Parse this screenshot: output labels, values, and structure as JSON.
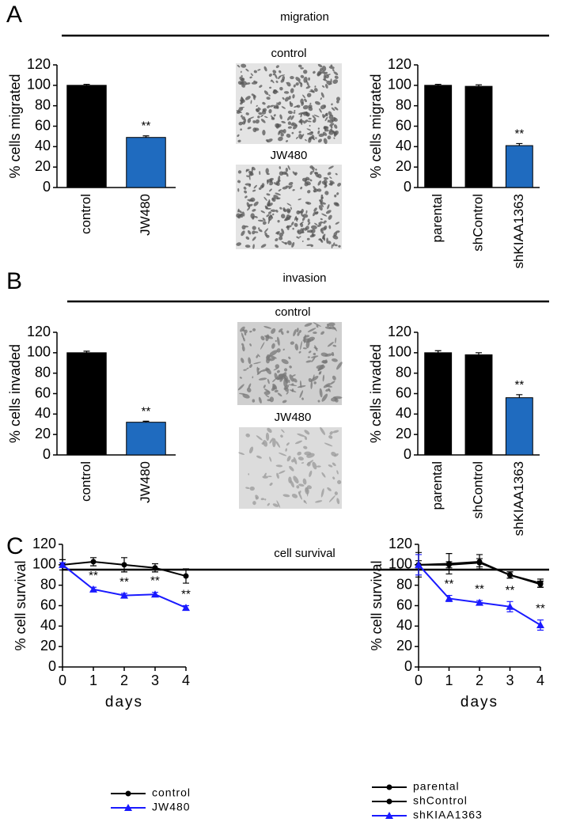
{
  "panels": [
    {
      "letter": "A",
      "title": "migration",
      "images": [
        "control",
        "JW480"
      ]
    },
    {
      "letter": "B",
      "title": "invasion",
      "images": [
        "control",
        "JW480"
      ]
    },
    {
      "letter": "C",
      "title": "cell survival"
    }
  ],
  "chart_data": [
    {
      "type": "bar",
      "ylabel": "% cells migrated",
      "categories": [
        "control",
        "JW480"
      ],
      "values": [
        100,
        49
      ],
      "errors": [
        1,
        1.5
      ],
      "colors": [
        "#000000",
        "#1f6bbf"
      ],
      "significance": [
        null,
        "**"
      ],
      "ylim": [
        0,
        120
      ],
      "yticks": [
        0,
        20,
        40,
        60,
        80,
        100,
        120
      ]
    },
    {
      "type": "bar",
      "ylabel": "% cells migrated",
      "categories": [
        "parental",
        "shControl",
        "shKIAA1363"
      ],
      "values": [
        100,
        99,
        41
      ],
      "errors": [
        1,
        1.5,
        2
      ],
      "colors": [
        "#000000",
        "#000000",
        "#1f6bbf"
      ],
      "significance": [
        null,
        null,
        "**"
      ],
      "ylim": [
        0,
        120
      ],
      "yticks": [
        0,
        20,
        40,
        60,
        80,
        100,
        120
      ]
    },
    {
      "type": "bar",
      "ylabel": "% cells invaded",
      "categories": [
        "control",
        "JW480"
      ],
      "values": [
        100,
        32
      ],
      "errors": [
        1.5,
        1
      ],
      "colors": [
        "#000000",
        "#1f6bbf"
      ],
      "significance": [
        null,
        "**"
      ],
      "ylim": [
        0,
        120
      ],
      "yticks": [
        0,
        20,
        40,
        60,
        80,
        100,
        120
      ]
    },
    {
      "type": "bar",
      "ylabel": "% cells invaded",
      "categories": [
        "parental",
        "shControl",
        "shKIAA1363"
      ],
      "values": [
        100,
        98,
        56
      ],
      "errors": [
        2,
        2,
        3
      ],
      "colors": [
        "#000000",
        "#000000",
        "#1f6bbf"
      ],
      "significance": [
        null,
        null,
        "**"
      ],
      "ylim": [
        0,
        120
      ],
      "yticks": [
        0,
        20,
        40,
        60,
        80,
        100,
        120
      ]
    },
    {
      "type": "line",
      "ylabel": "% cell survival",
      "xlabel": "days",
      "x": [
        0,
        1,
        2,
        3,
        4
      ],
      "xlim": [
        0,
        4
      ],
      "xticks": [
        0,
        1,
        2,
        3,
        4
      ],
      "ylim": [
        0,
        120
      ],
      "yticks": [
        0,
        20,
        40,
        60,
        80,
        100,
        120
      ],
      "series": [
        {
          "name": "control",
          "color": "#000000",
          "marker": "circle",
          "values": [
            100,
            103,
            100,
            97,
            89
          ],
          "errors": [
            5,
            4,
            7,
            4,
            7
          ]
        },
        {
          "name": "JW480",
          "color": "#1a1aff",
          "marker": "triangle",
          "values": [
            100,
            76,
            70,
            71,
            58
          ],
          "errors": [
            2,
            2,
            2,
            2,
            2
          ],
          "significance": [
            null,
            "**",
            "**",
            "**",
            "**"
          ]
        }
      ]
    },
    {
      "type": "line",
      "ylabel": "% cell survival",
      "xlabel": "days",
      "x": [
        0,
        1,
        2,
        3,
        4
      ],
      "xlim": [
        0,
        4
      ],
      "xticks": [
        0,
        1,
        2,
        3,
        4
      ],
      "ylim": [
        0,
        120
      ],
      "yticks": [
        0,
        20,
        40,
        60,
        80,
        100,
        120
      ],
      "series": [
        {
          "name": "parental",
          "color": "#000000",
          "marker": "circle",
          "values": [
            100,
            101,
            103,
            90,
            82
          ],
          "errors": [
            4,
            10,
            7,
            3,
            4
          ]
        },
        {
          "name": "shControl",
          "color": "#000000",
          "marker": "circle",
          "values": [
            100,
            100,
            102,
            90,
            81
          ],
          "errors": [
            12,
            3,
            4,
            3,
            3
          ]
        },
        {
          "name": "shKIAA1363",
          "color": "#1a1aff",
          "marker": "triangle",
          "values": [
            100,
            67,
            63,
            59,
            41
          ],
          "errors": [
            10,
            3,
            2,
            5,
            5
          ],
          "significance": [
            null,
            "**",
            "**",
            "**",
            "**"
          ]
        }
      ]
    }
  ]
}
